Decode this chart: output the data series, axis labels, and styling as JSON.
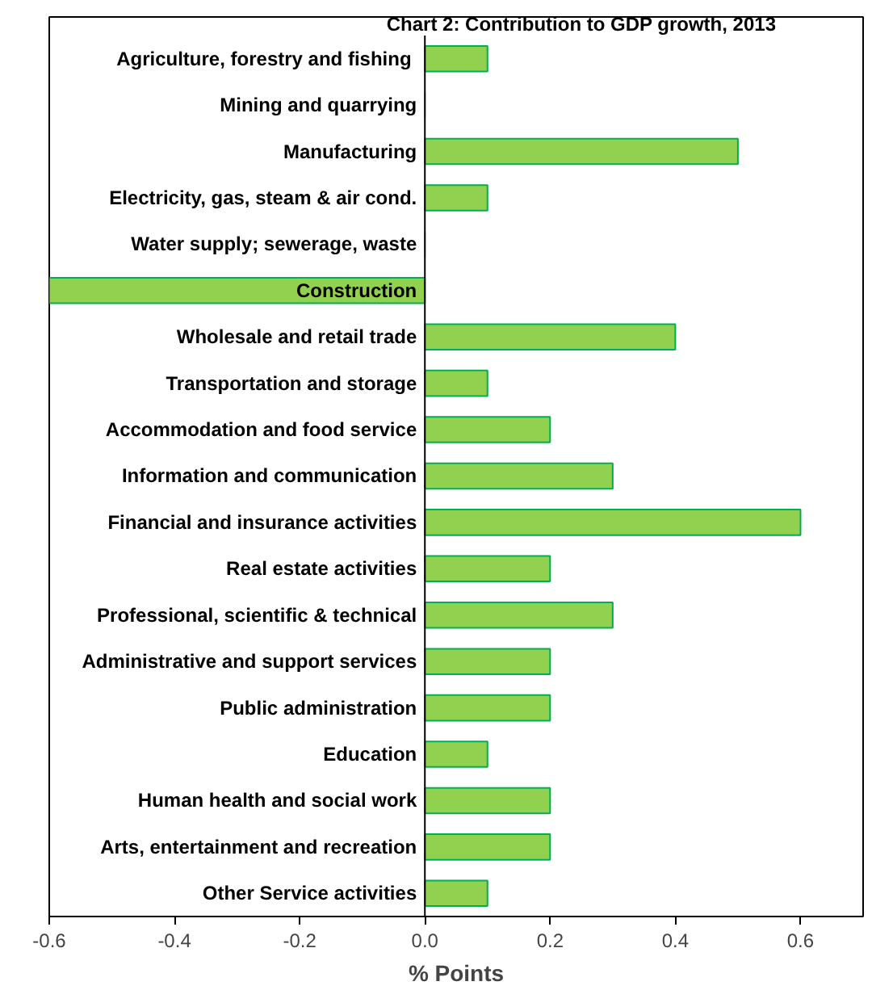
{
  "chart_data": {
    "type": "bar",
    "orientation": "horizontal",
    "title": "Chart 2: Contribution to GDP growth, 2013",
    "xlabel": "% Points",
    "categories": [
      "Agriculture,  forestry and fishing",
      "Mining and quarrying",
      "Manufacturing",
      "Electricity, gas, steam & air cond.",
      "Water supply; sewerage, waste",
      "Construction",
      "Wholesale and retail trade",
      "Transportation and storage",
      "Accommodation and food service",
      "Information and communication",
      "Financial and insurance activities",
      "Real estate activities",
      "Professional, scientific & technical",
      "Administrative and support services",
      "Public administration",
      "Education",
      "Human health and social work",
      "Arts, entertainment and recreation",
      "Other Service activities"
    ],
    "values": [
      0.1,
      0,
      0.5,
      0.1,
      0,
      -0.6,
      0.4,
      0.1,
      0.2,
      0.3,
      0.6,
      0.2,
      0.3,
      0.2,
      0.2,
      0.1,
      0.2,
      0.2,
      0.1
    ],
    "color": "#92d050",
    "xlim": [
      -0.6,
      0.7
    ],
    "xticks": [
      -0.6,
      -0.4,
      -0.2,
      {
        "value": 0,
        "label": "0.0"
      },
      0.2,
      0.4,
      0.6
    ],
    "grid": false
  }
}
